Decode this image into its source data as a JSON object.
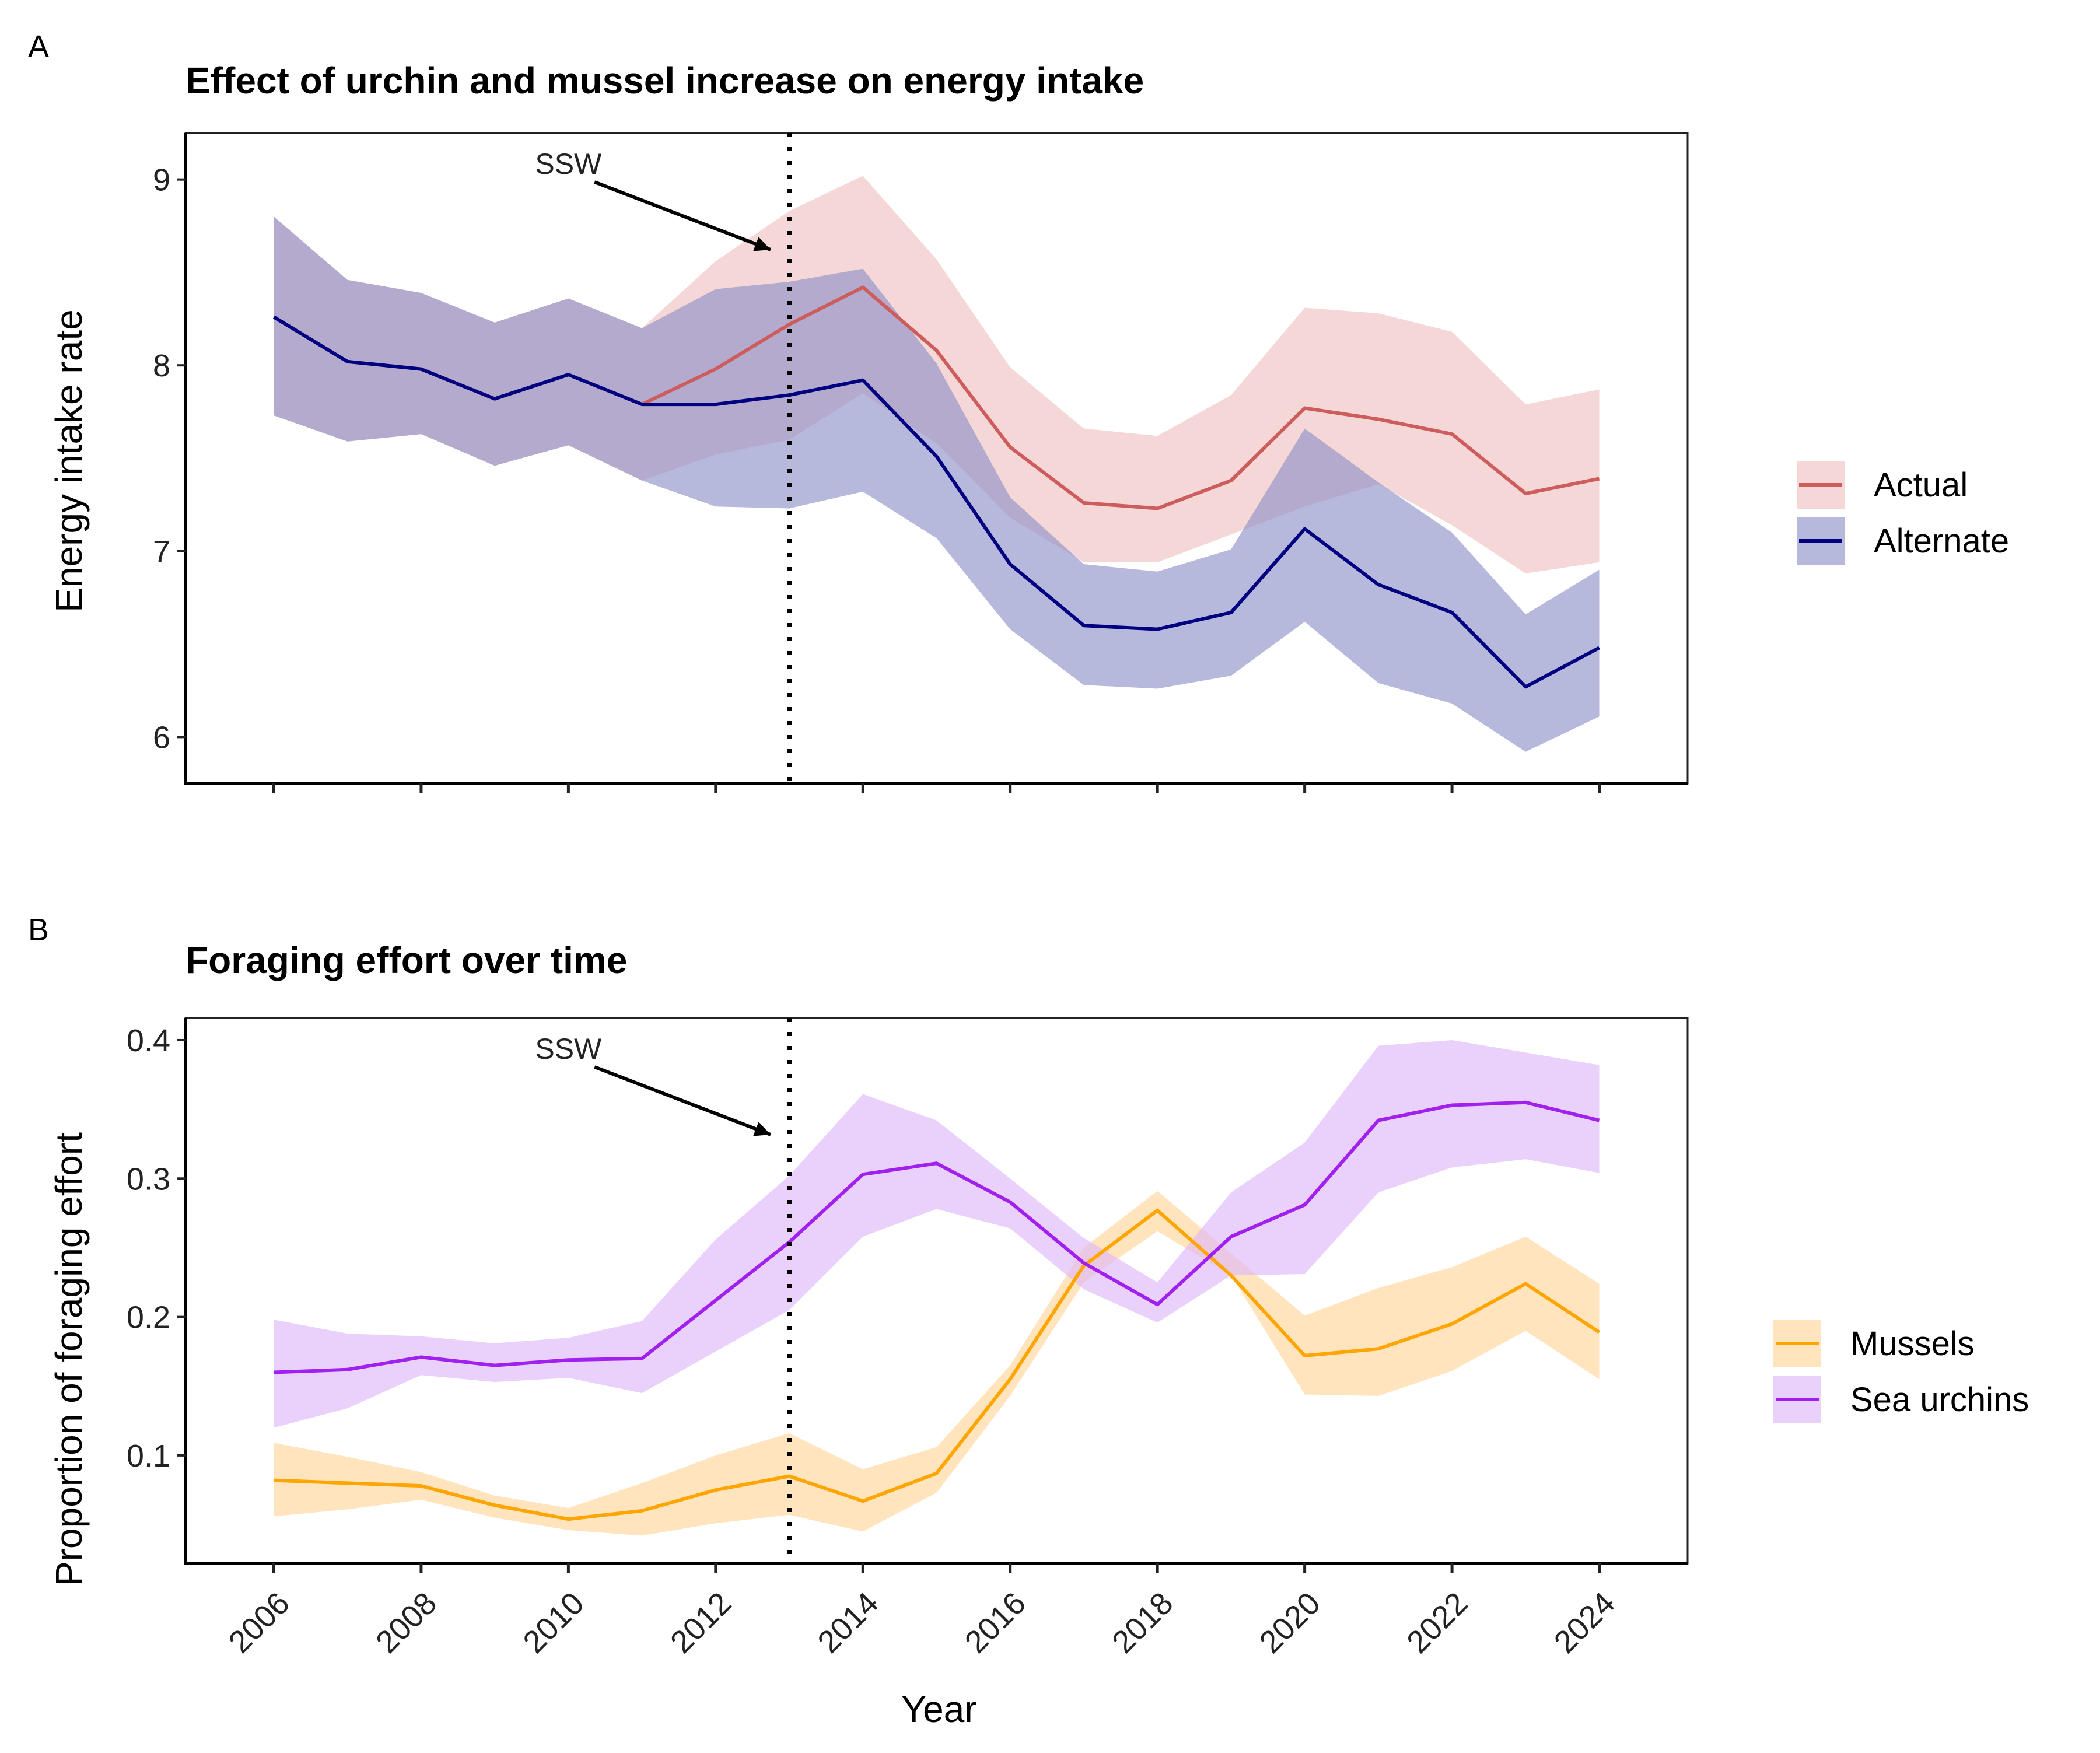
{
  "chart_data": [
    {
      "type": "area",
      "panel_label": "A",
      "title": "Effect of urchin and mussel increase on energy intake",
      "xlabel": "",
      "ylabel": "Energy intake rate",
      "ylim": [
        5.75,
        9.25
      ],
      "yticks": [
        6,
        7,
        8,
        9
      ],
      "x": [
        2006,
        2007,
        2008,
        2009,
        2010,
        2011,
        2012,
        2013,
        2014,
        2015,
        2016,
        2017,
        2018,
        2019,
        2020,
        2021,
        2022,
        2023,
        2024
      ],
      "series": [
        {
          "name": "Actual",
          "color": "#CD5C5C",
          "fill": "#efc2c2",
          "values": [
            8.26,
            8.02,
            7.98,
            7.82,
            7.95,
            7.79,
            7.98,
            8.22,
            8.42,
            8.08,
            7.56,
            7.26,
            7.23,
            7.38,
            7.77,
            7.71,
            7.63,
            7.31,
            7.39
          ],
          "lower": [
            7.73,
            7.59,
            7.63,
            7.46,
            7.57,
            7.38,
            7.52,
            7.6,
            7.85,
            7.58,
            7.18,
            6.94,
            6.94,
            7.09,
            7.24,
            7.36,
            7.14,
            6.88,
            6.94
          ],
          "upper": [
            8.8,
            8.46,
            8.39,
            8.23,
            8.36,
            8.2,
            8.56,
            8.83,
            9.02,
            8.57,
            7.99,
            7.66,
            7.62,
            7.84,
            8.31,
            8.28,
            8.18,
            7.79,
            7.87
          ]
        },
        {
          "name": "Alternate",
          "color": "#000080",
          "fill": "#8f92ca",
          "values": [
            8.26,
            8.02,
            7.98,
            7.82,
            7.95,
            7.79,
            7.79,
            7.84,
            7.92,
            7.51,
            6.93,
            6.6,
            6.58,
            6.67,
            7.12,
            6.82,
            6.67,
            6.27,
            6.48
          ],
          "lower": [
            7.73,
            7.59,
            7.63,
            7.46,
            7.57,
            7.38,
            7.24,
            7.23,
            7.32,
            7.07,
            6.58,
            6.28,
            6.26,
            6.33,
            6.62,
            6.29,
            6.18,
            5.92,
            6.11
          ],
          "upper": [
            8.8,
            8.46,
            8.39,
            8.23,
            8.36,
            8.2,
            8.41,
            8.45,
            8.52,
            8.01,
            7.29,
            6.93,
            6.89,
            7.01,
            7.66,
            7.37,
            7.1,
            6.66,
            6.9
          ]
        }
      ],
      "vline": {
        "x": 2013
      },
      "annotation": {
        "text": "SSW"
      },
      "legend_position": "right",
      "grid": false
    },
    {
      "type": "area",
      "panel_label": "B",
      "title": "Foraging effort over time",
      "xlabel": "Year",
      "ylabel": "Proportion of foraging effort",
      "ylim": [
        0.022,
        0.416
      ],
      "yticks": [
        0.1,
        0.2,
        0.3,
        0.4
      ],
      "ytick_labels": [
        "0.1",
        "0.2",
        "0.3",
        "0.4"
      ],
      "x": [
        2006,
        2007,
        2008,
        2009,
        2010,
        2011,
        2012,
        2013,
        2014,
        2015,
        2016,
        2017,
        2018,
        2019,
        2020,
        2021,
        2022,
        2023,
        2024
      ],
      "xticks": [
        2006,
        2008,
        2010,
        2012,
        2014,
        2016,
        2018,
        2020,
        2022,
        2024
      ],
      "series": [
        {
          "name": "Mussels",
          "color": "#FFA500",
          "fill": "#ffd699",
          "values": [
            0.082,
            0.08,
            0.078,
            0.064,
            0.054,
            0.06,
            0.075,
            0.085,
            0.067,
            0.087,
            0.155,
            0.237,
            0.277,
            0.23,
            0.172,
            0.177,
            0.195,
            0.224,
            0.189
          ],
          "lower": [
            0.056,
            0.061,
            0.068,
            0.055,
            0.046,
            0.042,
            0.051,
            0.057,
            0.045,
            0.073,
            0.143,
            0.225,
            0.262,
            0.23,
            0.144,
            0.143,
            0.161,
            0.19,
            0.155
          ],
          "upper": [
            0.109,
            0.099,
            0.088,
            0.071,
            0.062,
            0.08,
            0.1,
            0.116,
            0.09,
            0.106,
            0.165,
            0.25,
            0.291,
            0.246,
            0.201,
            0.221,
            0.236,
            0.258,
            0.224
          ]
        },
        {
          "name": "Sea urchins",
          "color": "#A020F0",
          "fill": "#dfb9f9",
          "values": [
            0.16,
            0.162,
            0.171,
            0.165,
            0.169,
            0.17,
            0.212,
            0.254,
            0.303,
            0.311,
            0.283,
            0.239,
            0.209,
            0.258,
            0.281,
            0.342,
            0.353,
            0.355,
            0.342
          ],
          "lower": [
            0.12,
            0.134,
            0.158,
            0.153,
            0.156,
            0.145,
            0.175,
            0.205,
            0.258,
            0.278,
            0.264,
            0.22,
            0.196,
            0.23,
            0.231,
            0.29,
            0.308,
            0.314,
            0.304
          ],
          "upper": [
            0.198,
            0.188,
            0.186,
            0.181,
            0.185,
            0.197,
            0.256,
            0.302,
            0.361,
            0.342,
            0.3,
            0.257,
            0.225,
            0.29,
            0.326,
            0.396,
            0.4,
            0.391,
            0.382
          ]
        }
      ],
      "vline": {
        "x": 2013
      },
      "annotation": {
        "text": "SSW"
      },
      "legend_position": "right",
      "grid": false
    }
  ]
}
